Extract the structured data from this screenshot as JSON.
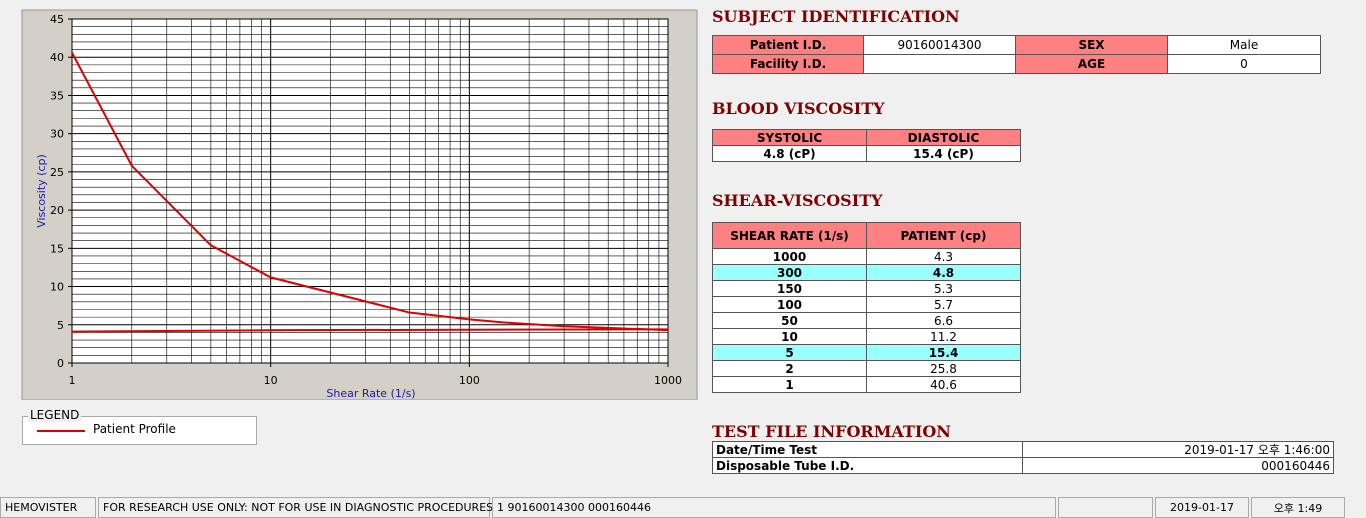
{
  "chart_data": {
    "type": "line",
    "x_label": "Shear Rate (1/s)",
    "y_label": "Viscosity (cp)",
    "xscale": "log",
    "xlim": [
      1,
      1000
    ],
    "xticks": [
      1,
      10,
      100,
      1000
    ],
    "ylim": [
      0,
      45
    ],
    "yticks": [
      0,
      5,
      10,
      15,
      20,
      25,
      30,
      35,
      40,
      45
    ],
    "grid": true,
    "series": [
      {
        "name": "Patient Profile",
        "color": "#dd0000",
        "x": [
          1,
          2,
          5,
          10,
          50,
          100,
          150,
          300,
          1000
        ],
        "values": [
          40.6,
          25.8,
          15.4,
          11.2,
          6.6,
          5.7,
          5.3,
          4.8,
          4.3
        ]
      },
      {
        "color": "#dd0000",
        "x": [
          1,
          12,
          1000
        ],
        "values": [
          4.1,
          4.3,
          4.4
        ]
      }
    ],
    "legend_title": "LEGEND"
  },
  "subject": {
    "title": "SUBJECT IDENTIFICATION",
    "fields": [
      {
        "label": "Patient I.D.",
        "value": "90160014300"
      },
      {
        "label": "SEX",
        "value": "Male"
      },
      {
        "label": "Facility I.D."
      },
      {
        "label": "AGE",
        "value": "0"
      }
    ]
  },
  "blood_viscosity": {
    "title": "BLOOD VISCOSITY",
    "headers": [
      "SYSTOLIC",
      "DIASTOLIC"
    ],
    "values": [
      "4.8 (cP)",
      "15.4 (cP)"
    ]
  },
  "shear_viscosity": {
    "title": "SHEAR-VISCOSITY",
    "headers": [
      "SHEAR RATE (1/s)",
      "PATIENT (cp)"
    ],
    "rows": [
      [
        "1000",
        "4.3"
      ],
      [
        "300",
        "4.8"
      ],
      [
        "150",
        "5.3"
      ],
      [
        "100",
        "5.7"
      ],
      [
        "50",
        "6.6"
      ],
      [
        "10",
        "11.2"
      ],
      [
        "5",
        "15.4"
      ],
      [
        "2",
        "25.8"
      ],
      [
        "1",
        "40.6"
      ]
    ]
  },
  "test_file": {
    "title": "TEST FILE INFORMATION",
    "rows": [
      [
        "Date/Time Test",
        "2019-01-17  오후 1:46:00"
      ],
      [
        "Disposable Tube I.D.",
        "000160446"
      ]
    ]
  },
  "status_bar": [
    "HEMOVISTER",
    "FOR RESEARCH USE ONLY: NOT FOR USE IN DIAGNOSTIC PROCEDURES",
    "1  90160014300  000160446",
    "2019-01-17",
    "오후 1:49"
  ]
}
